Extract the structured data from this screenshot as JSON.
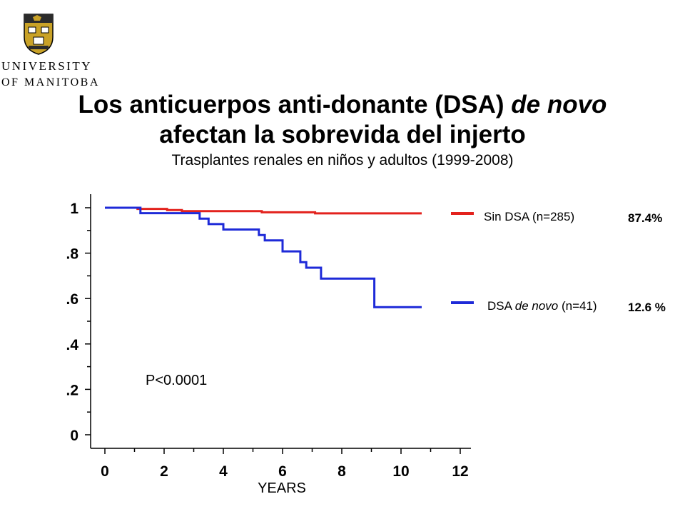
{
  "header": {
    "logo_text": [
      "UNIVERSITY",
      "OF MANITOBA"
    ],
    "title_line1": "Los anticuerpos anti-donante (DSA)",
    "title_line1_italic": "de novo",
    "title_line2": "afectan la sobrevida del injerto",
    "subtitle": "Trasplantes renales en niños y adultos (1999-2008)"
  },
  "chart_data": {
    "type": "line",
    "step": true,
    "xlabel": "YEARS",
    "ylabel": "",
    "xlim": [
      0,
      12
    ],
    "ylim": [
      0,
      1
    ],
    "x_ticks": [
      "0",
      "2",
      "4",
      "6",
      "8",
      "10",
      "12"
    ],
    "y_ticks": [
      "0",
      ".2",
      ".4",
      ".6",
      ".8",
      "1"
    ],
    "grid": false,
    "annotation": "P<0.0001",
    "series": [
      {
        "name": "Sin DSA (n=285)",
        "color": "#e3221d",
        "value_label": "87.4%",
        "points": [
          [
            0,
            1.0
          ],
          [
            1.1,
            1.0
          ],
          [
            1.1,
            0.995
          ],
          [
            2.1,
            0.995
          ],
          [
            2.1,
            0.99
          ],
          [
            2.6,
            0.99
          ],
          [
            2.6,
            0.985
          ],
          [
            5.3,
            0.985
          ],
          [
            5.3,
            0.98
          ],
          [
            7.1,
            0.98
          ],
          [
            7.1,
            0.975
          ],
          [
            10.7,
            0.975
          ]
        ]
      },
      {
        "name": "DSA de novo (n=41)",
        "name_plain": "DSA",
        "name_italic": "de novo",
        "name_suffix": "(n=41)",
        "color": "#1e2ad8",
        "value_label": "12.6 %",
        "points": [
          [
            0,
            1.0
          ],
          [
            1.2,
            1.0
          ],
          [
            1.2,
            0.976
          ],
          [
            3.2,
            0.976
          ],
          [
            3.2,
            0.952
          ],
          [
            3.5,
            0.952
          ],
          [
            3.5,
            0.928
          ],
          [
            4.0,
            0.928
          ],
          [
            4.0,
            0.904
          ],
          [
            5.2,
            0.904
          ],
          [
            5.2,
            0.88
          ],
          [
            5.4,
            0.88
          ],
          [
            5.4,
            0.856
          ],
          [
            6.0,
            0.856
          ],
          [
            6.0,
            0.808
          ],
          [
            6.6,
            0.808
          ],
          [
            6.6,
            0.76
          ],
          [
            6.8,
            0.76
          ],
          [
            6.8,
            0.736
          ],
          [
            7.3,
            0.736
          ],
          [
            7.3,
            0.688
          ],
          [
            9.1,
            0.688
          ],
          [
            9.1,
            0.562
          ],
          [
            10.7,
            0.562
          ]
        ]
      }
    ]
  }
}
